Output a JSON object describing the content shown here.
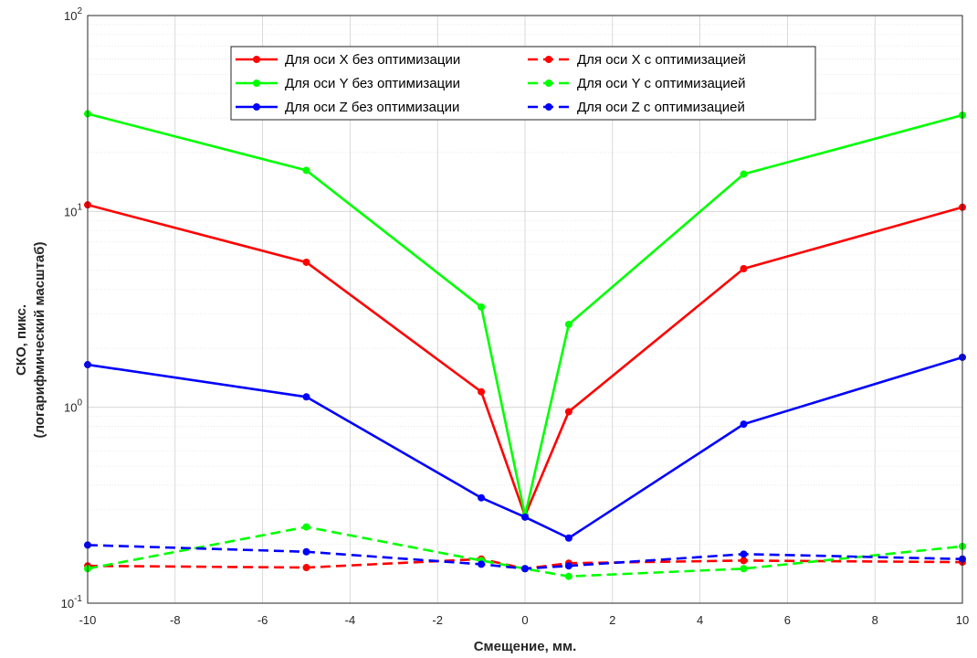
{
  "chart_data": {
    "type": "line",
    "title": "",
    "xlabel": "Смещение, мм.",
    "ylabel_lines": [
      "СКО, пикс.",
      "(логарифмический масштаб)"
    ],
    "x": [
      -10,
      -5,
      -1,
      0,
      1,
      5,
      10
    ],
    "xlim": [
      -10,
      10
    ],
    "ylim": [
      0.1,
      100
    ],
    "yscale": "log",
    "grid": true,
    "minor_grid": true,
    "legend_position": "top-center",
    "legend_columns": 2,
    "xticks": [
      "-10",
      "-8",
      "-6",
      "-4",
      "-2",
      "0",
      "2",
      "4",
      "6",
      "8",
      "10"
    ],
    "yticks": [
      {
        "value": 0.1,
        "base": "10",
        "exp": "-1"
      },
      {
        "value": 1,
        "base": "10",
        "exp": "0"
      },
      {
        "value": 10,
        "base": "10",
        "exp": "1"
      },
      {
        "value": 100,
        "base": "10",
        "exp": "2"
      }
    ],
    "series": [
      {
        "name": "Для оси X без оптимизации",
        "color": "#ff0000",
        "style": "solid",
        "values": [
          10.8,
          5.5,
          1.2,
          0.28,
          0.95,
          5.1,
          10.5
        ]
      },
      {
        "name": "Для оси X с оптимизацией",
        "color": "#ff0000",
        "style": "dashed",
        "values": [
          0.155,
          0.152,
          0.168,
          0.15,
          0.16,
          0.165,
          0.162
        ]
      },
      {
        "name": "Для оси Y без оптимизации",
        "color": "#00ff00",
        "style": "solid",
        "values": [
          31.5,
          16.2,
          3.25,
          0.28,
          2.65,
          15.5,
          31.0
        ]
      },
      {
        "name": "Для оси Y с оптимизацией",
        "color": "#00ff00",
        "style": "dashed",
        "values": [
          0.15,
          0.245,
          0.165,
          0.15,
          0.137,
          0.15,
          0.195
        ]
      },
      {
        "name": "Для оси Z без оптимизации",
        "color": "#0000ff",
        "style": "solid",
        "values": [
          1.65,
          1.13,
          0.345,
          0.275,
          0.215,
          0.82,
          1.8
        ]
      },
      {
        "name": "Для оси Z с оптимизацией",
        "color": "#0000ff",
        "style": "dashed",
        "values": [
          0.198,
          0.183,
          0.158,
          0.15,
          0.155,
          0.178,
          0.168
        ]
      }
    ]
  }
}
